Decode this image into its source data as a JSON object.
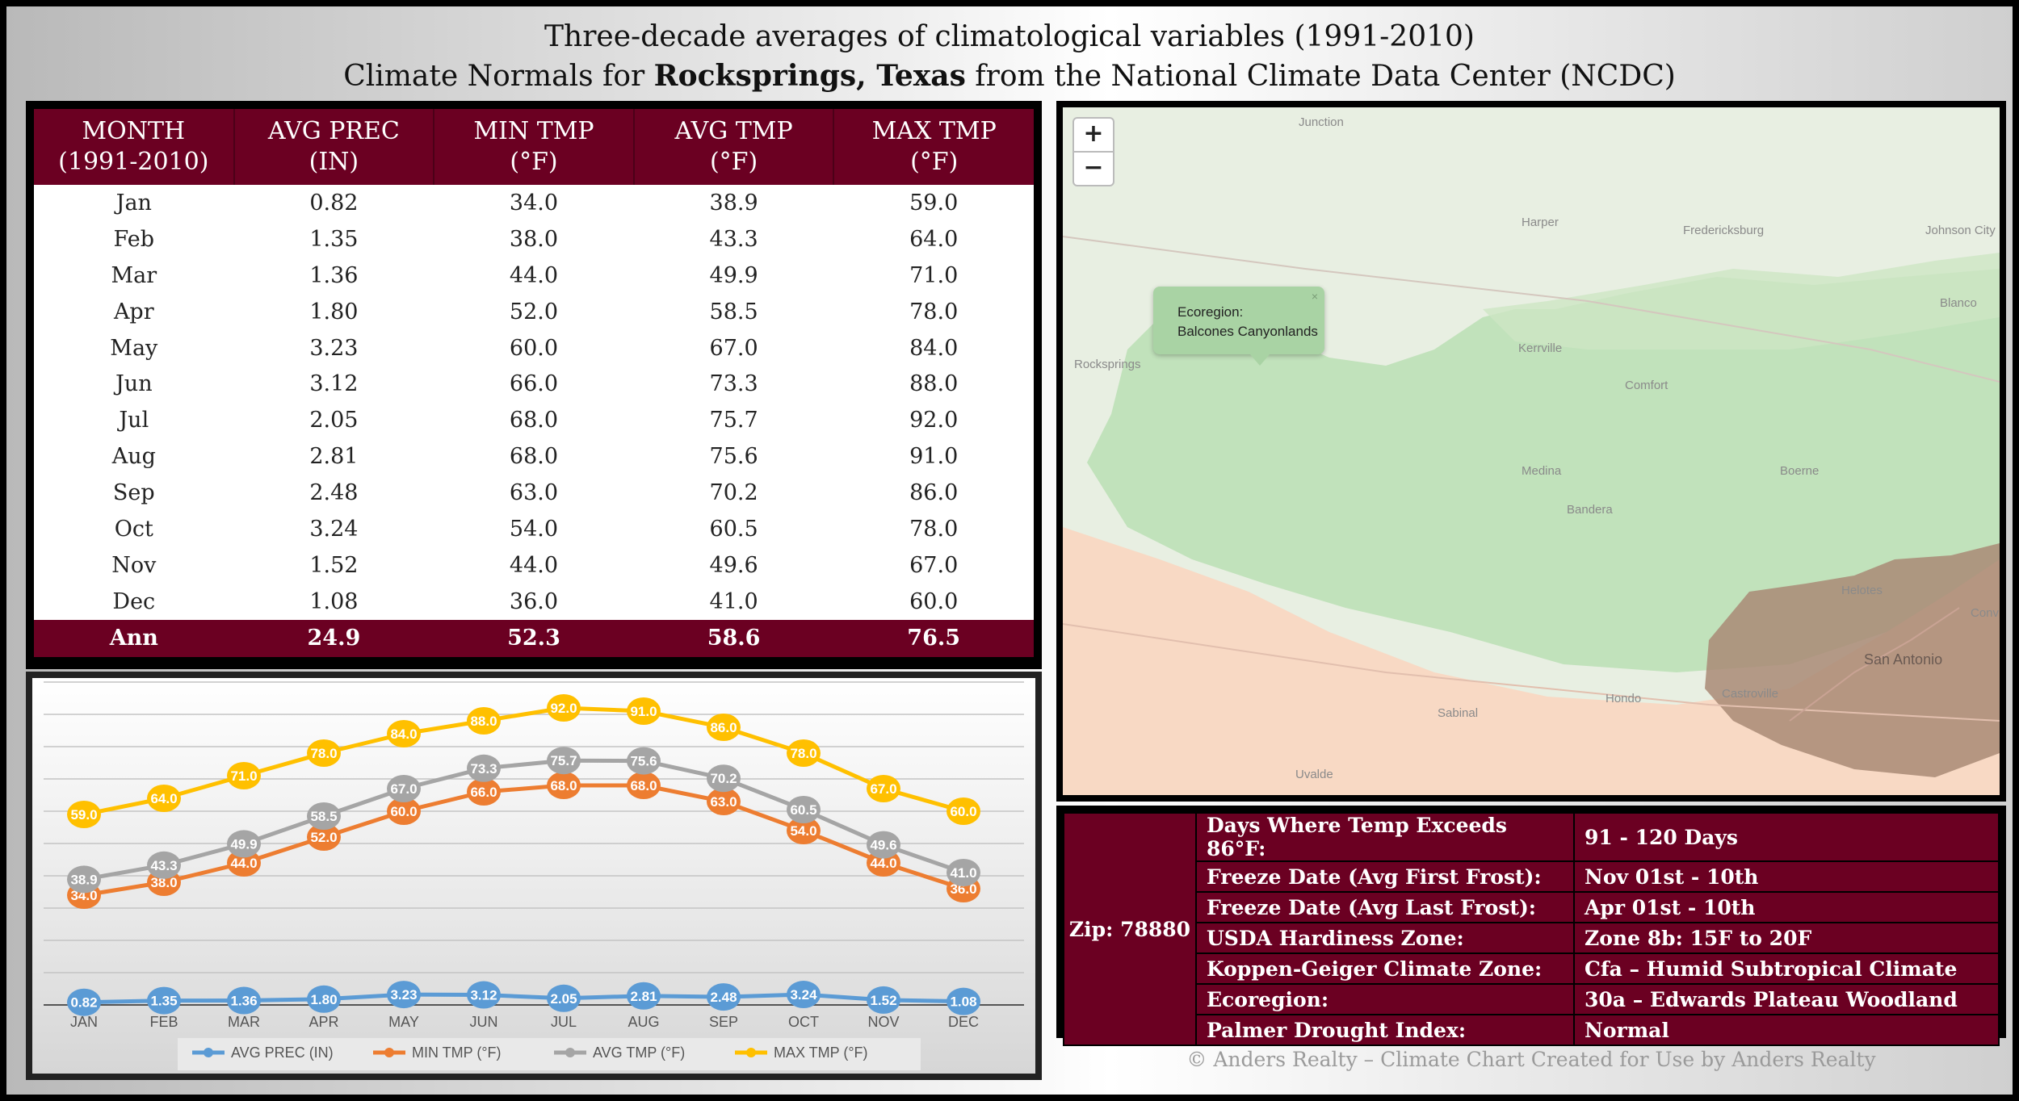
{
  "title": {
    "line1": "Three-decade averages of climatological variables (1991-2010)",
    "line2_prefix": "Climate Normals for ",
    "line2_place": "Rocksprings, Texas",
    "line2_suffix": " from the National Climate Data Center (NCDC)"
  },
  "table": {
    "headers": [
      {
        "line1": "MONTH",
        "line2": "(1991-2010)"
      },
      {
        "line1": "AVG PREC",
        "line2": "(IN)"
      },
      {
        "line1": "MIN TMP",
        "line2": "(°F)"
      },
      {
        "line1": "AVG TMP",
        "line2": "(°F)"
      },
      {
        "line1": "MAX TMP",
        "line2": "(°F)"
      }
    ],
    "rows": [
      [
        "Jan",
        "0.82",
        "34.0",
        "38.9",
        "59.0"
      ],
      [
        "Feb",
        "1.35",
        "38.0",
        "43.3",
        "64.0"
      ],
      [
        "Mar",
        "1.36",
        "44.0",
        "49.9",
        "71.0"
      ],
      [
        "Apr",
        "1.80",
        "52.0",
        "58.5",
        "78.0"
      ],
      [
        "May",
        "3.23",
        "60.0",
        "67.0",
        "84.0"
      ],
      [
        "Jun",
        "3.12",
        "66.0",
        "73.3",
        "88.0"
      ],
      [
        "Jul",
        "2.05",
        "68.0",
        "75.7",
        "92.0"
      ],
      [
        "Aug",
        "2.81",
        "68.0",
        "75.6",
        "91.0"
      ],
      [
        "Sep",
        "2.48",
        "63.0",
        "70.2",
        "86.0"
      ],
      [
        "Oct",
        "3.24",
        "54.0",
        "60.5",
        "78.0"
      ],
      [
        "Nov",
        "1.52",
        "44.0",
        "49.6",
        "67.0"
      ],
      [
        "Dec",
        "1.08",
        "36.0",
        "41.0",
        "60.0"
      ]
    ],
    "annual": [
      "Ann",
      "24.9",
      "52.3",
      "58.6",
      "76.5"
    ]
  },
  "chart_data": {
    "type": "line",
    "categories": [
      "JAN",
      "FEB",
      "MAR",
      "APR",
      "MAY",
      "JUN",
      "JUL",
      "AUG",
      "SEP",
      "OCT",
      "NOV",
      "DEC"
    ],
    "series": [
      {
        "name": "AVG PREC (IN)",
        "color": "#5b9bd5",
        "values": [
          0.82,
          1.35,
          1.36,
          1.8,
          3.23,
          3.12,
          2.05,
          2.81,
          2.48,
          3.24,
          1.52,
          1.08
        ]
      },
      {
        "name": "MIN TMP  (°F)",
        "color": "#ed7d31",
        "values": [
          34.0,
          38.0,
          44.0,
          52.0,
          60.0,
          66.0,
          68.0,
          68.0,
          63.0,
          54.0,
          44.0,
          36.0
        ]
      },
      {
        "name": "AVG TMP  (°F)",
        "color": "#a5a5a5",
        "values": [
          38.9,
          43.3,
          49.9,
          58.5,
          67.0,
          73.3,
          75.7,
          75.6,
          70.2,
          60.5,
          49.6,
          41.0
        ]
      },
      {
        "name": "MAX TMP  (°F)",
        "color": "#ffc000",
        "values": [
          59.0,
          64.0,
          71.0,
          78.0,
          84.0,
          88.0,
          92.0,
          91.0,
          86.0,
          78.0,
          67.0,
          60.0
        ]
      }
    ],
    "ylim": [
      0,
      100
    ],
    "grid": true,
    "legend": "bottom",
    "data_labels": true
  },
  "map": {
    "zoom_in": "+",
    "zoom_out": "−",
    "popup_line1": "Ecoregion:",
    "popup_line2": "Balcones Canyonlands",
    "popup_close": "×",
    "towns": [
      "Junction",
      "Harper",
      "Fredericksburg",
      "Johnson City",
      "Blanco",
      "Rocksprings",
      "Kerrville",
      "Comfort",
      "Boerne",
      "Medina",
      "Bandera",
      "Helotes",
      "San Antonio",
      "Sabinal",
      "Hondo",
      "Castroville",
      "Uvalde",
      "Conv"
    ]
  },
  "info": {
    "zip": "Zip: 78880",
    "rows": [
      {
        "label": "Days Where Temp Exceeds 86°F:",
        "value": "91 - 120 Days"
      },
      {
        "label": "Freeze Date (Avg First Frost):",
        "value": "Nov 01st - 10th"
      },
      {
        "label": "Freeze Date (Avg Last Frost):",
        "value": "Apr 01st - 10th"
      },
      {
        "label": "USDA Hardiness Zone:",
        "value": "Zone 8b: 15F to 20F"
      },
      {
        "label": "Koppen-Geiger Climate Zone:",
        "value": "Cfa – Humid Subtropical Climate"
      },
      {
        "label": "Ecoregion:",
        "value": "30a – Edwards Plateau Woodland"
      },
      {
        "label": "Palmer Drought Index:",
        "value": "Normal"
      }
    ]
  },
  "copyright": "© Anders Realty – Climate Chart Created for Use by Anders Realty"
}
